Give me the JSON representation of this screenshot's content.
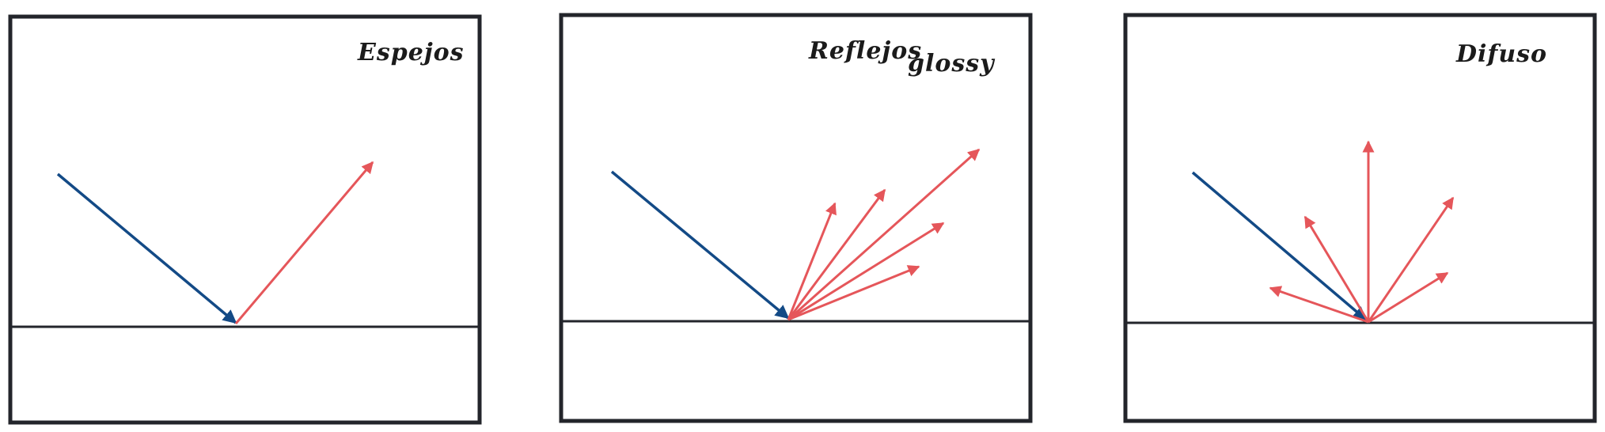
{
  "colors": {
    "frame": "#23252b",
    "incident_ray": "#134a86",
    "reflected_ray": "#e5565a",
    "background": "#ffffff"
  },
  "panels": [
    {
      "id": "mirror",
      "labels": [
        "Espejos"
      ],
      "reflection_type": "specular",
      "reflected_ray_count": 1
    },
    {
      "id": "glossy",
      "labels": [
        "Reflejos",
        "glossy"
      ],
      "reflection_type": "glossy",
      "reflected_ray_count": 5
    },
    {
      "id": "diffuse",
      "labels": [
        "Difuso"
      ],
      "reflection_type": "diffuse",
      "reflected_ray_count": 5
    }
  ]
}
